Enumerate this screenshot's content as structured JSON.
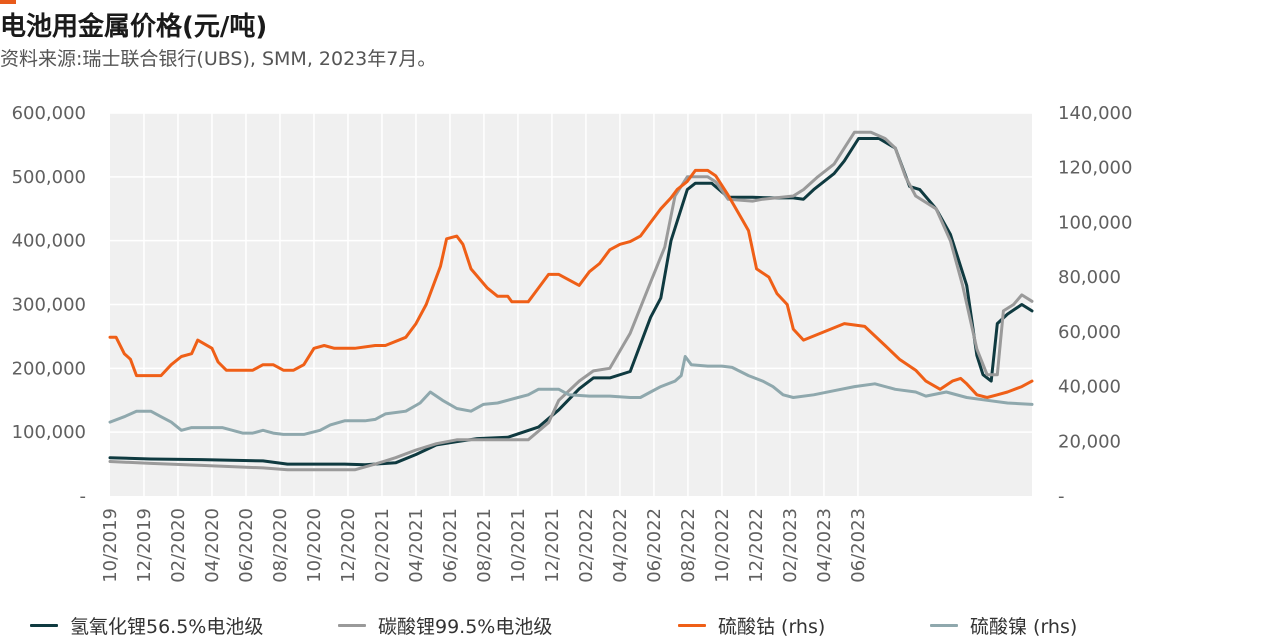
{
  "header": {
    "title": "电池用金属价格(元/吨)",
    "subtitle": "资料来源:瑞士联合银行(UBS), SMM, 2023年7月。"
  },
  "chart_data": {
    "type": "line",
    "title": "电池用金属价格(元/吨)",
    "subtitle": "资料来源:瑞士联合银行(UBS), SMM, 2023年7月。",
    "x_tick_labels": [
      "10/2019",
      "12/2019",
      "02/2020",
      "04/2020",
      "06/2020",
      "08/2020",
      "10/2020",
      "12/2020",
      "02/2021",
      "04/2021",
      "06/2021",
      "08/2021",
      "10/2021",
      "12/2021",
      "02/2022",
      "04/2022",
      "06/2022",
      "08/2022",
      "10/2022",
      "12/2022",
      "02/2023",
      "04/2023",
      "06/2023"
    ],
    "y_left": {
      "ylim": [
        0,
        600000
      ],
      "tick_labels": [
        "-",
        "100,000",
        "200,000",
        "300,000",
        "400,000",
        "500,000",
        "600,000"
      ]
    },
    "y_right": {
      "ylim": [
        0,
        140000
      ],
      "tick_labels": [
        "-",
        "20,000",
        "40,000",
        "60,000",
        "80,000",
        "100,000",
        "120,000",
        "140,000"
      ]
    },
    "grid": true,
    "legend_position": "bottom",
    "colors": {
      "lioh": "#0f3a40",
      "li2co3": "#9a9a9a",
      "coso4": "#ef5f17",
      "niso4": "#8fa8ad",
      "plot_bg": "#f0f0f0",
      "grid": "#ffffff"
    },
    "series": [
      {
        "name": "氢氧化锂56.5%电池级",
        "axis": "left",
        "color": "#0f3a40",
        "points": [
          [
            2019.75,
            60000
          ],
          [
            2019.95,
            58000
          ],
          [
            2020.2,
            57000
          ],
          [
            2020.5,
            55000
          ],
          [
            2020.62,
            50000
          ],
          [
            2020.75,
            50000
          ],
          [
            2020.9,
            50000
          ],
          [
            2021.0,
            49000
          ],
          [
            2021.15,
            52000
          ],
          [
            2021.25,
            65000
          ],
          [
            2021.35,
            80000
          ],
          [
            2021.45,
            85000
          ],
          [
            2021.55,
            90000
          ],
          [
            2021.7,
            92000
          ],
          [
            2021.85,
            108000
          ],
          [
            2021.95,
            135000
          ],
          [
            2022.05,
            168000
          ],
          [
            2022.12,
            185000
          ],
          [
            2022.2,
            185000
          ],
          [
            2022.3,
            195000
          ],
          [
            2022.4,
            280000
          ],
          [
            2022.45,
            310000
          ],
          [
            2022.5,
            400000
          ],
          [
            2022.58,
            480000
          ],
          [
            2022.62,
            490000
          ],
          [
            2022.7,
            490000
          ],
          [
            2022.78,
            468000
          ],
          [
            2022.9,
            468000
          ],
          [
            2023.0,
            467000
          ],
          [
            2023.1,
            467000
          ],
          [
            2023.15,
            465000
          ],
          [
            2023.2,
            480000
          ],
          [
            2023.3,
            505000
          ],
          [
            2023.35,
            525000
          ],
          [
            2023.42,
            560000
          ],
          [
            2023.52,
            560000
          ],
          [
            2023.6,
            545000
          ],
          [
            2023.67,
            485000
          ],
          [
            2023.72,
            480000
          ],
          [
            2023.8,
            450000
          ],
          [
            2023.87,
            410000
          ],
          [
            2023.95,
            330000
          ],
          [
            2024.0,
            220000
          ],
          [
            2024.03,
            190000
          ],
          [
            2024.07,
            180000
          ],
          [
            2024.1,
            270000
          ],
          [
            2024.15,
            285000
          ],
          [
            2024.22,
            300000
          ],
          [
            2024.27,
            290000
          ]
        ]
      },
      {
        "name": "碳酸锂99.5%电池级",
        "axis": "left",
        "color": "#9a9a9a",
        "points": [
          [
            2019.75,
            54000
          ],
          [
            2019.95,
            51000
          ],
          [
            2020.2,
            48000
          ],
          [
            2020.5,
            44000
          ],
          [
            2020.62,
            41000
          ],
          [
            2020.9,
            41000
          ],
          [
            2020.95,
            41000
          ],
          [
            2021.05,
            50000
          ],
          [
            2021.15,
            60000
          ],
          [
            2021.25,
            72000
          ],
          [
            2021.35,
            82000
          ],
          [
            2021.45,
            88000
          ],
          [
            2021.7,
            88000
          ],
          [
            2021.8,
            88000
          ],
          [
            2021.9,
            115000
          ],
          [
            2021.95,
            150000
          ],
          [
            2022.05,
            180000
          ],
          [
            2022.12,
            196000
          ],
          [
            2022.2,
            200000
          ],
          [
            2022.3,
            255000
          ],
          [
            2022.4,
            335000
          ],
          [
            2022.47,
            390000
          ],
          [
            2022.52,
            470000
          ],
          [
            2022.58,
            500000
          ],
          [
            2022.68,
            500000
          ],
          [
            2022.72,
            492000
          ],
          [
            2022.78,
            465000
          ],
          [
            2022.9,
            462000
          ],
          [
            2022.95,
            465000
          ],
          [
            2023.1,
            470000
          ],
          [
            2023.15,
            480000
          ],
          [
            2023.22,
            500000
          ],
          [
            2023.3,
            520000
          ],
          [
            2023.35,
            545000
          ],
          [
            2023.4,
            570000
          ],
          [
            2023.48,
            570000
          ],
          [
            2023.55,
            560000
          ],
          [
            2023.6,
            545000
          ],
          [
            2023.65,
            500000
          ],
          [
            2023.7,
            470000
          ],
          [
            2023.8,
            450000
          ],
          [
            2023.87,
            400000
          ],
          [
            2023.93,
            330000
          ],
          [
            2024.0,
            230000
          ],
          [
            2024.05,
            190000
          ],
          [
            2024.1,
            190000
          ],
          [
            2024.13,
            290000
          ],
          [
            2024.18,
            300000
          ],
          [
            2024.22,
            315000
          ],
          [
            2024.27,
            305000
          ]
        ]
      },
      {
        "name": "硫酸钴 (rhs)",
        "axis": "right",
        "color": "#ef5f17",
        "points": [
          [
            2019.75,
            58000
          ],
          [
            2019.78,
            58000
          ],
          [
            2019.82,
            52000
          ],
          [
            2019.85,
            50000
          ],
          [
            2019.88,
            44000
          ],
          [
            2019.95,
            44000
          ],
          [
            2020.0,
            44000
          ],
          [
            2020.05,
            48000
          ],
          [
            2020.1,
            51000
          ],
          [
            2020.15,
            52000
          ],
          [
            2020.18,
            57000
          ],
          [
            2020.25,
            54000
          ],
          [
            2020.28,
            49000
          ],
          [
            2020.32,
            46000
          ],
          [
            2020.45,
            46000
          ],
          [
            2020.5,
            48000
          ],
          [
            2020.55,
            48000
          ],
          [
            2020.6,
            46000
          ],
          [
            2020.65,
            46000
          ],
          [
            2020.7,
            48000
          ],
          [
            2020.75,
            54000
          ],
          [
            2020.8,
            55000
          ],
          [
            2020.85,
            54000
          ],
          [
            2020.95,
            54000
          ],
          [
            2021.05,
            55000
          ],
          [
            2021.1,
            55000
          ],
          [
            2021.2,
            58000
          ],
          [
            2021.25,
            63000
          ],
          [
            2021.3,
            70000
          ],
          [
            2021.37,
            84000
          ],
          [
            2021.4,
            94000
          ],
          [
            2021.45,
            95000
          ],
          [
            2021.48,
            92000
          ],
          [
            2021.52,
            83000
          ],
          [
            2021.6,
            76000
          ],
          [
            2021.65,
            73000
          ],
          [
            2021.7,
            73000
          ],
          [
            2021.72,
            71000
          ],
          [
            2021.8,
            71000
          ],
          [
            2021.85,
            76000
          ],
          [
            2021.9,
            81000
          ],
          [
            2021.95,
            81000
          ],
          [
            2022.0,
            79000
          ],
          [
            2022.05,
            77000
          ],
          [
            2022.1,
            82000
          ],
          [
            2022.15,
            85000
          ],
          [
            2022.2,
            90000
          ],
          [
            2022.25,
            92000
          ],
          [
            2022.3,
            93000
          ],
          [
            2022.35,
            95000
          ],
          [
            2022.4,
            100000
          ],
          [
            2022.45,
            105000
          ],
          [
            2022.5,
            109000
          ],
          [
            2022.53,
            112000
          ],
          [
            2022.58,
            115000
          ],
          [
            2022.62,
            119000
          ],
          [
            2022.68,
            119000
          ],
          [
            2022.72,
            117000
          ],
          [
            2022.78,
            110000
          ],
          [
            2022.85,
            101000
          ],
          [
            2022.88,
            97000
          ],
          [
            2022.92,
            83000
          ],
          [
            2022.98,
            80000
          ],
          [
            2023.02,
            74000
          ],
          [
            2023.07,
            70000
          ],
          [
            2023.1,
            61000
          ],
          [
            2023.15,
            57000
          ],
          [
            2023.25,
            60000
          ],
          [
            2023.35,
            63000
          ],
          [
            2023.45,
            62000
          ],
          [
            2023.55,
            55000
          ],
          [
            2023.62,
            50000
          ],
          [
            2023.7,
            46000
          ],
          [
            2023.75,
            42000
          ],
          [
            2023.82,
            39000
          ],
          [
            2023.88,
            42000
          ],
          [
            2023.92,
            43000
          ],
          [
            2023.95,
            41000
          ],
          [
            2024.0,
            37000
          ],
          [
            2024.05,
            36000
          ],
          [
            2024.1,
            37000
          ],
          [
            2024.15,
            38000
          ],
          [
            2024.22,
            40000
          ],
          [
            2024.27,
            42000
          ]
        ]
      },
      {
        "name": "硫酸镍 (rhs)",
        "axis": "right",
        "color": "#8fa8ad",
        "points": [
          [
            2019.75,
            27000
          ],
          [
            2019.82,
            29000
          ],
          [
            2019.88,
            31000
          ],
          [
            2019.95,
            31000
          ],
          [
            2020.0,
            29000
          ],
          [
            2020.05,
            27000
          ],
          [
            2020.1,
            24000
          ],
          [
            2020.15,
            25000
          ],
          [
            2020.2,
            25000
          ],
          [
            2020.3,
            25000
          ],
          [
            2020.35,
            24000
          ],
          [
            2020.4,
            23000
          ],
          [
            2020.45,
            23000
          ],
          [
            2020.5,
            24000
          ],
          [
            2020.55,
            23000
          ],
          [
            2020.6,
            22500
          ],
          [
            2020.7,
            22500
          ],
          [
            2020.78,
            24000
          ],
          [
            2020.83,
            26000
          ],
          [
            2020.9,
            27500
          ],
          [
            2021.0,
            27500
          ],
          [
            2021.05,
            28000
          ],
          [
            2021.1,
            30000
          ],
          [
            2021.2,
            31000
          ],
          [
            2021.27,
            34000
          ],
          [
            2021.32,
            38000
          ],
          [
            2021.38,
            35000
          ],
          [
            2021.45,
            32000
          ],
          [
            2021.52,
            31000
          ],
          [
            2021.58,
            33500
          ],
          [
            2021.65,
            34000
          ],
          [
            2021.75,
            36000
          ],
          [
            2021.8,
            37000
          ],
          [
            2021.85,
            39000
          ],
          [
            2021.95,
            39000
          ],
          [
            2022.0,
            37000
          ],
          [
            2022.1,
            36500
          ],
          [
            2022.2,
            36500
          ],
          [
            2022.3,
            36000
          ],
          [
            2022.35,
            36000
          ],
          [
            2022.4,
            38000
          ],
          [
            2022.45,
            40000
          ],
          [
            2022.52,
            42000
          ],
          [
            2022.55,
            44000
          ],
          [
            2022.57,
            51000
          ],
          [
            2022.6,
            48000
          ],
          [
            2022.68,
            47500
          ],
          [
            2022.75,
            47500
          ],
          [
            2022.8,
            47000
          ],
          [
            2022.88,
            44000
          ],
          [
            2022.95,
            42000
          ],
          [
            2023.0,
            40000
          ],
          [
            2023.05,
            37000
          ],
          [
            2023.1,
            36000
          ],
          [
            2023.2,
            37000
          ],
          [
            2023.3,
            38500
          ],
          [
            2023.4,
            40000
          ],
          [
            2023.5,
            41000
          ],
          [
            2023.6,
            39000
          ],
          [
            2023.7,
            38000
          ],
          [
            2023.75,
            36500
          ],
          [
            2023.85,
            38000
          ],
          [
            2023.95,
            36000
          ],
          [
            2024.05,
            35000
          ],
          [
            2024.15,
            34000
          ],
          [
            2024.27,
            33500
          ]
        ]
      }
    ]
  },
  "legend": [
    {
      "label": "氢氧化锂56.5%电池级",
      "color": "#0f3a40"
    },
    {
      "label": "碳酸锂99.5%电池级",
      "color": "#9a9a9a"
    },
    {
      "label": "硫酸钴 (rhs)",
      "color": "#ef5f17"
    },
    {
      "label": "硫酸镍 (rhs)",
      "color": "#8fa8ad"
    }
  ]
}
